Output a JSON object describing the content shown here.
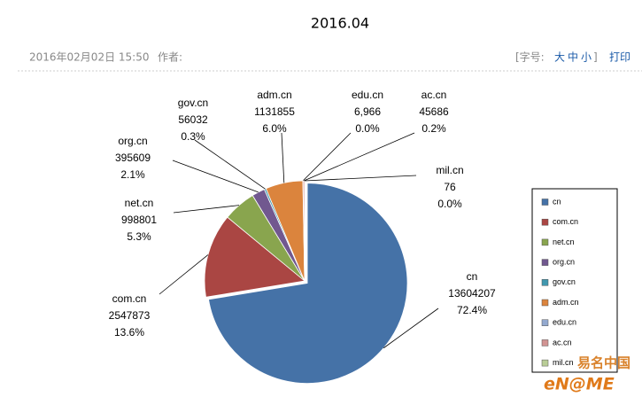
{
  "header": {
    "title": "2016.04",
    "date": "2016年02月02日 15:50",
    "author": "作者:",
    "font_size": "[字号:",
    "large": "大",
    "medium": "中",
    "small": "小",
    "close": "]",
    "print": "打印"
  },
  "watermark": {
    "text": "易名中国",
    "logo": "eN@ME"
  },
  "chart_data": {
    "type": "pie",
    "categories": [
      "cn",
      "com.cn",
      "net.cn",
      "org.cn",
      "gov.cn",
      "adm.cn",
      "edu.cn",
      "ac.cn",
      "mil.cn"
    ],
    "values": [
      13604207,
      2547873,
      998801,
      395609,
      56032,
      1131855,
      6966,
      45686,
      76
    ],
    "value_labels": [
      "13604207",
      "2547873",
      "998801",
      "395609",
      "56032",
      "1131855",
      "6,966",
      "45686",
      "76"
    ],
    "percent_labels": [
      "72.4%",
      "13.6%",
      "5.3%",
      "2.1%",
      "0.3%",
      "6.0%",
      "0.0%",
      "0.2%",
      "0.0%"
    ],
    "colors": [
      "#4572a7",
      "#aa4643",
      "#89a54e",
      "#71588f",
      "#4198af",
      "#db843d",
      "#93a9cf",
      "#d19392",
      "#b9cd96"
    ],
    "legend": "right"
  }
}
